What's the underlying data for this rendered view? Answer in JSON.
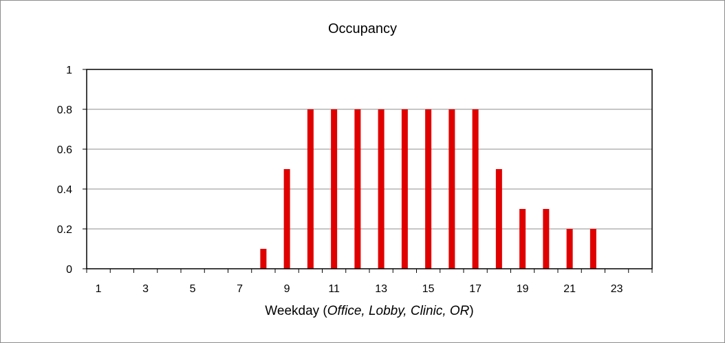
{
  "chart_data": {
    "type": "bar",
    "title": "Occupancy",
    "xlabel_prefix": "Weekday (",
    "xlabel_italic": "Office, Lobby, Clinic, OR",
    "xlabel_suffix": ")",
    "ylabel": "",
    "ylim": [
      0,
      1
    ],
    "yticks": [
      "0",
      "0.2",
      "0.4",
      "0.6",
      "0.8",
      "1"
    ],
    "ytick_values": [
      0,
      0.2,
      0.4,
      0.6,
      0.8,
      1
    ],
    "xtick_labels": [
      "1",
      "3",
      "5",
      "7",
      "9",
      "11",
      "13",
      "15",
      "17",
      "19",
      "21",
      "23"
    ],
    "categories": [
      1,
      2,
      3,
      4,
      5,
      6,
      7,
      8,
      9,
      10,
      11,
      12,
      13,
      14,
      15,
      16,
      17,
      18,
      19,
      20,
      21,
      22,
      23,
      24
    ],
    "values": [
      0,
      0,
      0,
      0,
      0,
      0,
      0,
      0.1,
      0.5,
      0.8,
      0.8,
      0.8,
      0.8,
      0.8,
      0.8,
      0.8,
      0.8,
      0.5,
      0.3,
      0.3,
      0.2,
      0.2,
      0,
      0
    ],
    "bar_color": "#e00000",
    "grid": true,
    "legend": "none"
  }
}
